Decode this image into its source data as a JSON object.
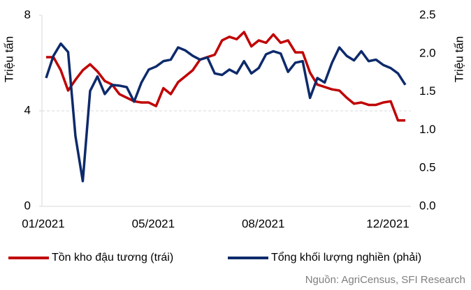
{
  "chart_data": {
    "type": "line",
    "y_label": "Triệu tấn",
    "y2_label": "Triệu tấn",
    "source": "Nguồn: AgriCensus, SFI Research",
    "categories": [
      "01/2021",
      null,
      null,
      null,
      null,
      null,
      null,
      null,
      null,
      null,
      null,
      null,
      null,
      null,
      null,
      "05/2021",
      null,
      null,
      null,
      null,
      null,
      null,
      null,
      null,
      null,
      null,
      null,
      null,
      null,
      null,
      "08/2021",
      null,
      null,
      null,
      null,
      null,
      null,
      null,
      null,
      null,
      null,
      null,
      null,
      null,
      null,
      null,
      null,
      "12/2021",
      null,
      null
    ],
    "ylim": [
      0,
      8
    ],
    "yticks": [
      0,
      4,
      8
    ],
    "y2lim": [
      0,
      2.5
    ],
    "y2ticks": [
      {
        "value": 0,
        "label": "0.0"
      },
      0.5,
      {
        "value": 1,
        "label": "1.0"
      },
      1.5,
      {
        "value": 2,
        "label": "2.0"
      },
      2.5
    ],
    "grid_at": 4,
    "legend": "bottom",
    "series": [
      {
        "name": "Tồn kho đậu tương (trái)",
        "color": "#c00000",
        "axis": "y",
        "values": [
          6.25,
          6.25,
          5.7,
          4.85,
          5.3,
          5.7,
          5.95,
          5.65,
          5.25,
          5.1,
          4.7,
          4.55,
          4.4,
          4.35,
          4.35,
          4.2,
          4.95,
          4.7,
          5.2,
          5.45,
          5.7,
          6.15,
          6.25,
          6.35,
          6.95,
          7.1,
          7.0,
          7.3,
          6.7,
          6.95,
          6.85,
          7.2,
          6.85,
          6.95,
          6.45,
          6.45,
          5.6,
          5.1,
          5.0,
          4.9,
          4.85,
          4.55,
          4.3,
          4.35,
          4.25,
          4.25,
          4.35,
          4.4,
          3.6,
          3.6
        ]
      },
      {
        "name": "Tổng khối lượng nghiền (phải)",
        "color": "#0d2a6b",
        "axis": "y2",
        "values": [
          1.68,
          1.97,
          2.13,
          2.02,
          0.92,
          0.33,
          1.51,
          1.7,
          1.47,
          1.59,
          1.58,
          1.56,
          1.37,
          1.62,
          1.79,
          1.83,
          1.9,
          1.92,
          2.08,
          2.04,
          1.97,
          1.92,
          1.95,
          1.74,
          1.72,
          1.79,
          1.74,
          1.9,
          1.74,
          1.81,
          1.99,
          2.03,
          2.0,
          1.76,
          1.88,
          1.9,
          1.42,
          1.68,
          1.62,
          1.88,
          2.08,
          1.97,
          1.91,
          2.03,
          1.9,
          1.92,
          1.85,
          1.81,
          1.74,
          1.59
        ]
      }
    ]
  }
}
